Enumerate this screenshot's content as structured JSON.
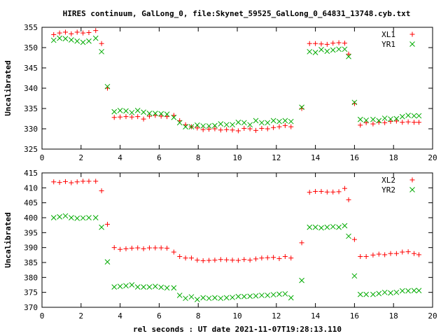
{
  "title": "HIRES continuum, GalLong_0, file:Skynet_59525_GalLong_0_64831_13748.cyb.txt",
  "chart_data": [
    {
      "type": "scatter",
      "ylabel": "Uncalibrated",
      "xlim": [
        0,
        20
      ],
      "ylim": [
        325,
        355
      ],
      "xticks": [
        0,
        2,
        4,
        6,
        8,
        10,
        12,
        14,
        16,
        18,
        20
      ],
      "yticks": [
        325,
        330,
        335,
        340,
        345,
        350,
        355
      ],
      "grid": false,
      "legend_position": "top-right",
      "x": [
        0.6,
        0.9,
        1.2,
        1.5,
        1.8,
        2.1,
        2.4,
        2.75,
        3.05,
        3.35,
        3.7,
        4.0,
        4.3,
        4.6,
        4.9,
        5.2,
        5.5,
        5.8,
        6.1,
        6.4,
        6.75,
        7.05,
        7.35,
        7.65,
        7.95,
        8.25,
        8.55,
        8.85,
        9.15,
        9.45,
        9.75,
        10.05,
        10.35,
        10.65,
        10.95,
        11.25,
        11.55,
        11.85,
        12.15,
        12.45,
        12.75,
        13.3,
        13.7,
        14.0,
        14.3,
        14.6,
        14.9,
        15.2,
        15.5,
        15.7,
        16.0,
        16.3,
        16.6,
        16.95,
        17.25,
        17.55,
        17.85,
        18.15,
        18.45,
        18.75,
        19.05,
        19.3
      ],
      "series": [
        {
          "name": "XL1",
          "color": "#ff0000",
          "marker": "plus",
          "values": [
            353.2,
            353.6,
            353.8,
            353.4,
            353.8,
            353.6,
            353.7,
            354.2,
            351.0,
            340.0,
            332.8,
            332.9,
            333.0,
            332.9,
            333.0,
            332.4,
            333.1,
            333.3,
            333.1,
            333.0,
            333.3,
            332.0,
            331.0,
            330.5,
            330.2,
            329.8,
            329.9,
            330.0,
            329.7,
            329.8,
            329.7,
            329.5,
            330.1,
            330.0,
            329.6,
            330.1,
            330.0,
            330.3,
            330.5,
            330.8,
            330.5,
            335.0,
            351.0,
            351.0,
            350.9,
            350.8,
            351.1,
            351.2,
            351.1,
            348.4,
            336.2,
            330.9,
            331.5,
            331.2,
            331.6,
            331.5,
            331.8,
            331.9,
            331.6,
            331.7,
            331.6,
            331.6
          ]
        },
        {
          "name": "YR1",
          "color": "#00aa00",
          "marker": "cross",
          "values": [
            351.8,
            352.3,
            352.2,
            351.9,
            351.6,
            351.3,
            351.6,
            352.3,
            349.0,
            340.4,
            334.2,
            334.5,
            334.4,
            334.0,
            334.5,
            334.1,
            333.8,
            333.8,
            333.7,
            333.6,
            332.8,
            331.5,
            330.5,
            330.5,
            330.9,
            330.7,
            330.7,
            330.8,
            331.2,
            331.0,
            331.0,
            331.6,
            331.5,
            331.0,
            332.0,
            331.5,
            331.5,
            332.0,
            331.8,
            332.0,
            331.8,
            335.3,
            349.0,
            348.8,
            349.5,
            349.1,
            349.4,
            349.6,
            349.6,
            347.8,
            336.5,
            332.3,
            332.1,
            332.3,
            332.0,
            332.6,
            332.4,
            332.5,
            333.0,
            333.3,
            333.2,
            333.2
          ]
        }
      ]
    },
    {
      "type": "scatter",
      "xlabel": "rel seconds : UT date 2021-11-07T19:28:13.110",
      "ylabel": "Uncalibrated",
      "xlim": [
        0,
        20
      ],
      "ylim": [
        370,
        415
      ],
      "xticks": [
        0,
        2,
        4,
        6,
        8,
        10,
        12,
        14,
        16,
        18,
        20
      ],
      "yticks": [
        370,
        375,
        380,
        385,
        390,
        395,
        400,
        405,
        410,
        415
      ],
      "grid": false,
      "legend_position": "top-right",
      "x": [
        0.6,
        0.9,
        1.2,
        1.5,
        1.8,
        2.1,
        2.4,
        2.75,
        3.05,
        3.35,
        3.7,
        4.0,
        4.3,
        4.6,
        4.9,
        5.2,
        5.5,
        5.8,
        6.1,
        6.4,
        6.75,
        7.05,
        7.35,
        7.65,
        7.95,
        8.25,
        8.55,
        8.85,
        9.15,
        9.45,
        9.75,
        10.05,
        10.35,
        10.65,
        10.95,
        11.25,
        11.55,
        11.85,
        12.15,
        12.45,
        12.75,
        13.3,
        13.7,
        14.0,
        14.3,
        14.6,
        14.9,
        15.2,
        15.5,
        15.7,
        16.0,
        16.3,
        16.6,
        16.95,
        17.25,
        17.55,
        17.85,
        18.15,
        18.45,
        18.75,
        19.05,
        19.3
      ],
      "series": [
        {
          "name": "XL2",
          "color": "#ff0000",
          "marker": "plus",
          "values": [
            412.0,
            411.8,
            412.1,
            411.7,
            412.0,
            412.2,
            412.2,
            412.2,
            409.0,
            397.8,
            390.0,
            389.4,
            389.6,
            389.8,
            389.9,
            389.6,
            389.9,
            389.9,
            389.9,
            389.8,
            388.5,
            387.0,
            386.5,
            386.5,
            385.8,
            385.6,
            385.7,
            385.8,
            386.0,
            385.9,
            385.8,
            385.7,
            386.0,
            385.8,
            386.2,
            386.5,
            386.6,
            386.7,
            386.3,
            387.0,
            386.5,
            391.6,
            408.5,
            408.8,
            408.8,
            408.6,
            408.6,
            408.7,
            409.8,
            406.0,
            392.7,
            387.0,
            387.0,
            387.5,
            387.8,
            387.6,
            388.0,
            388.0,
            388.5,
            388.6,
            388.0,
            387.6
          ]
        },
        {
          "name": "YR2",
          "color": "#00aa00",
          "marker": "cross",
          "values": [
            400.0,
            400.3,
            400.6,
            400.0,
            399.8,
            399.9,
            400.0,
            400.0,
            396.8,
            385.2,
            376.8,
            377.0,
            377.2,
            377.5,
            376.8,
            376.8,
            376.8,
            377.0,
            376.7,
            376.5,
            376.5,
            374.0,
            373.0,
            373.5,
            372.6,
            373.2,
            373.0,
            373.2,
            373.0,
            373.2,
            373.3,
            373.6,
            373.6,
            373.7,
            373.8,
            374.0,
            374.0,
            374.2,
            374.4,
            374.5,
            373.2,
            379.0,
            396.8,
            396.8,
            396.6,
            396.8,
            397.0,
            396.8,
            397.3,
            393.8,
            380.5,
            374.3,
            374.3,
            374.3,
            374.6,
            375.0,
            374.8,
            375.0,
            375.5,
            375.5,
            375.6,
            375.6
          ]
        }
      ]
    }
  ]
}
